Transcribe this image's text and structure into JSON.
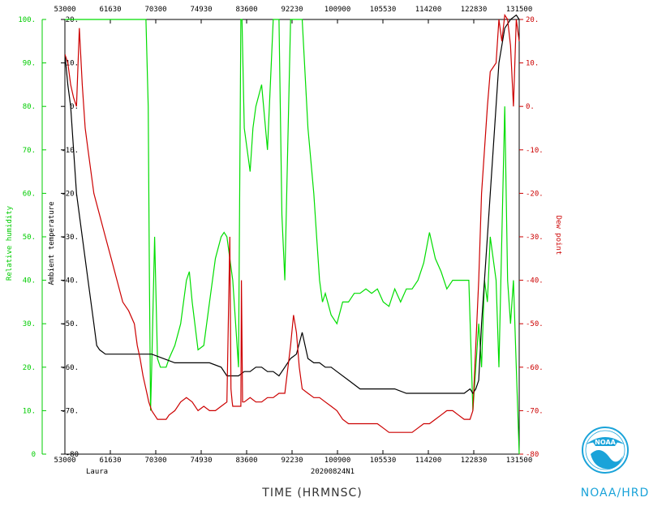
{
  "chart_data": {
    "type": "line",
    "x_ticks": [
      "53000",
      "61630",
      "70300",
      "74930",
      "83600",
      "92230",
      "100900",
      "105530",
      "114200",
      "122830",
      "131500"
    ],
    "x_range": [
      53000,
      131500
    ],
    "left_axis_rh": {
      "label": "Relative humidity",
      "ticks": [
        "0",
        "10.",
        "20.",
        "30.",
        "40.",
        "50.",
        "60.",
        "70.",
        "80.",
        "90.",
        "100."
      ],
      "range": [
        0,
        100
      ],
      "color": "#00cc00"
    },
    "left_axis_temp": {
      "label": "Ambient temperature",
      "ticks": [
        "-80",
        "-70.",
        "-60.",
        "-50.",
        "-40.",
        "-30.",
        "-20.",
        "-10.",
        "0.",
        "10.",
        "20."
      ],
      "range": [
        -80,
        20
      ],
      "color": "#000000"
    },
    "right_axis": {
      "label": "Dew point",
      "ticks": [
        "-80",
        "-70.",
        "-60.",
        "-50.",
        "-40.",
        "-30.",
        "-20.",
        "-10.",
        "0.",
        "10.",
        "20."
      ],
      "range": [
        -80,
        20
      ],
      "color": "#cc0000"
    },
    "xlabel": "TIME (HRMNSC)",
    "storm": "Laura",
    "flight_id": "20200824N1",
    "agency": "NOAA/HRD",
    "series": [
      {
        "name": "Relative humidity",
        "color": "#00dd00",
        "x": [
          53000,
          53500,
          54000,
          55000,
          56000,
          57000,
          58000,
          59000,
          60000,
          60500,
          61000,
          61500,
          62000,
          63000,
          64000,
          65000,
          66000,
          67000,
          67400,
          67600,
          67800,
          68000,
          68500,
          69000,
          69500,
          70000,
          70500,
          71000,
          72000,
          73000,
          74000,
          74500,
          75000,
          76000,
          77000,
          78000,
          79000,
          80000,
          80500,
          81000,
          81500,
          82000,
          83000,
          83400,
          83600,
          84000,
          84500,
          85000,
          85500,
          86000,
          87000,
          88000,
          89000,
          90000,
          90500,
          91000,
          91500,
          92000,
          92500,
          93000,
          94000,
          95000,
          96000,
          96500,
          97000,
          97500,
          98000,
          99000,
          100000,
          101000,
          102000,
          103000,
          104000,
          105000,
          106000,
          107000,
          108000,
          109000,
          110000,
          111000,
          112000,
          113000,
          114000,
          115000,
          116000,
          117000,
          118000,
          119000,
          120000,
          121000,
          122000,
          122800,
          123500,
          124000,
          124500,
          125000,
          125500,
          126000,
          126500,
          127000,
          127500,
          128000,
          128500,
          129000,
          129500,
          130000,
          130500,
          131000,
          131500
        ],
        "values": [
          100,
          100,
          100,
          100,
          100,
          100,
          100,
          100,
          100,
          100,
          100,
          100,
          100,
          100,
          100,
          100,
          100,
          100,
          80,
          40,
          10,
          20,
          50,
          22,
          20,
          20,
          20,
          22,
          25,
          30,
          40,
          42,
          35,
          24,
          25,
          35,
          45,
          50,
          51,
          50,
          45,
          40,
          20,
          100,
          100,
          75,
          70,
          65,
          75,
          80,
          85,
          70,
          100,
          100,
          55,
          40,
          70,
          100,
          100,
          100,
          100,
          75,
          60,
          50,
          40,
          35,
          37,
          32,
          30,
          35,
          35,
          37,
          37,
          38,
          37,
          38,
          35,
          34,
          38,
          35,
          38,
          38,
          40,
          44,
          51,
          45,
          42,
          38,
          40,
          40,
          40,
          40,
          10,
          20,
          30,
          20,
          40,
          35,
          50,
          45,
          40,
          20,
          50,
          80,
          40,
          30,
          40,
          20,
          0
        ]
      },
      {
        "name": "Ambient temperature",
        "color": "#000000",
        "x": [
          53000,
          53500,
          54000,
          54500,
          55000,
          56000,
          57000,
          58000,
          58500,
          59000,
          60000,
          62000,
          65000,
          66000,
          67000,
          68000,
          70000,
          72000,
          74000,
          76000,
          78000,
          80000,
          81000,
          82000,
          83000,
          84000,
          85000,
          86000,
          87000,
          88000,
          89000,
          90000,
          91000,
          92000,
          93000,
          94000,
          95000,
          96000,
          97000,
          98000,
          99000,
          100000,
          102000,
          104000,
          105000,
          106000,
          108000,
          110000,
          112000,
          114000,
          116000,
          118000,
          120000,
          122000,
          123000,
          123500,
          124000,
          124500,
          125000,
          126000,
          127000,
          128000,
          129000,
          130000,
          131000,
          131500
        ],
        "values": [
          12,
          5,
          0,
          -10,
          -20,
          -30,
          -40,
          -50,
          -55,
          -56,
          -57,
          -57,
          -57,
          -57,
          -57,
          -57,
          -58,
          -59,
          -59,
          -59,
          -59,
          -60,
          -62,
          -62,
          -62,
          -61,
          -61,
          -60,
          -60,
          -61,
          -61,
          -62,
          -60,
          -58,
          -57,
          -52,
          -58,
          -59,
          -59,
          -60,
          -60,
          -61,
          -63,
          -65,
          -65,
          -65,
          -65,
          -65,
          -66,
          -66,
          -66,
          -66,
          -66,
          -66,
          -65,
          -66,
          -65,
          -63,
          -50,
          -30,
          -10,
          10,
          18,
          20,
          21,
          20
        ]
      },
      {
        "name": "Dew point",
        "color": "#cc0000",
        "x": [
          53000,
          53500,
          54000,
          54500,
          55000,
          55500,
          56000,
          56500,
          57000,
          58000,
          59000,
          60000,
          61000,
          62000,
          63000,
          64000,
          65000,
          65500,
          66000,
          66500,
          67000,
          67500,
          68000,
          68500,
          69000,
          69500,
          70000,
          70500,
          71000,
          72000,
          73000,
          74000,
          75000,
          76000,
          77000,
          78000,
          79000,
          80000,
          81000,
          81500,
          81700,
          81900,
          82000,
          83000,
          83400,
          83500,
          83700,
          84000,
          85000,
          86000,
          87000,
          88000,
          89000,
          90000,
          91000,
          92000,
          92500,
          93000,
          93500,
          94000,
          95000,
          96000,
          97000,
          98000,
          99000,
          100000,
          101000,
          102000,
          103000,
          104000,
          105000,
          106000,
          107000,
          108000,
          109000,
          110000,
          111000,
          112000,
          113000,
          114000,
          115000,
          116000,
          117000,
          118000,
          119000,
          120000,
          121000,
          122000,
          122500,
          123000,
          123500,
          124000,
          124500,
          125000,
          125500,
          126000,
          126500,
          127000,
          127500,
          128000,
          128500,
          129000,
          129500,
          130000,
          130500,
          131000,
          131500
        ],
        "values": [
          12,
          10,
          5,
          2,
          0,
          18,
          5,
          -5,
          -10,
          -20,
          -25,
          -30,
          -35,
          -40,
          -45,
          -47,
          -50,
          -55,
          -58,
          -62,
          -65,
          -68,
          -70,
          -71,
          -72,
          -72,
          -72,
          -72,
          -71,
          -70,
          -68,
          -67,
          -68,
          -70,
          -69,
          -70,
          -70,
          -69,
          -68,
          -30,
          -65,
          -68,
          -69,
          -69,
          -69,
          -40,
          -68,
          -68,
          -67,
          -68,
          -68,
          -67,
          -67,
          -66,
          -66,
          -55,
          -48,
          -52,
          -60,
          -65,
          -66,
          -67,
          -67,
          -68,
          -69,
          -70,
          -72,
          -73,
          -73,
          -73,
          -73,
          -73,
          -73,
          -74,
          -75,
          -75,
          -75,
          -75,
          -75,
          -74,
          -73,
          -73,
          -72,
          -71,
          -70,
          -70,
          -71,
          -72,
          -72,
          -72,
          -70,
          -55,
          -40,
          -20,
          -10,
          0,
          8,
          9,
          10,
          20,
          15,
          21,
          20,
          14,
          0,
          20,
          15
        ]
      }
    ]
  }
}
